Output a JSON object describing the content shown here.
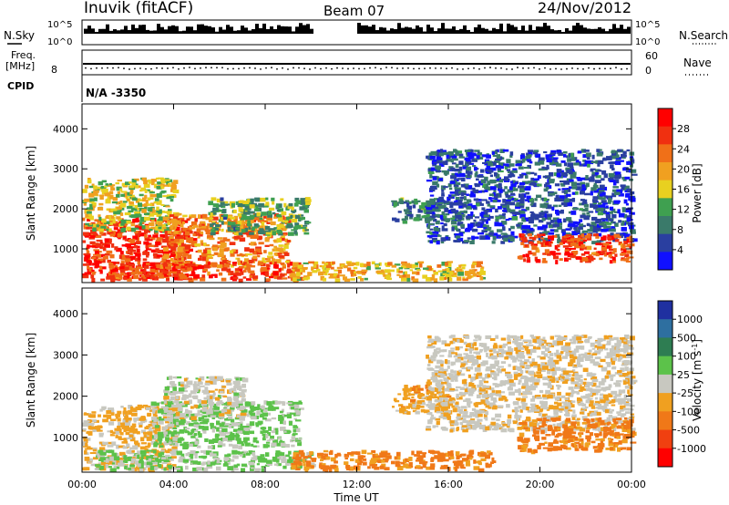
{
  "header": {
    "station": "Inuvik (fitACF)",
    "beam": "Beam 07",
    "date": "24/Nov/2012"
  },
  "top_panels": {
    "nsky_label": "N.Sky",
    "nsearch_label": "N.Search",
    "nsky_ticks": [
      "10^5",
      "10^0"
    ],
    "freq_label_1": "Freq.",
    "freq_label_2": "[MHz]",
    "freq_tick": "8",
    "nave_label": "Nave",
    "nave_ticks": [
      "60",
      "0"
    ],
    "cpid_label": "CPID",
    "cpid_value": "N/A -3350"
  },
  "colors": {
    "power": [
      "#1010ff",
      "#2a3fa0",
      "#3a7a6a",
      "#3fa050",
      "#e8d020",
      "#f0a020",
      "#f07018",
      "#f03010",
      "#ff0000"
    ],
    "velocity": [
      "#1f30a0",
      "#2e6fa0",
      "#2e7d52",
      "#5cc24a",
      "#c8c8c0",
      "#f0a020",
      "#f07818",
      "#f04010",
      "#ff0000"
    ]
  },
  "chart_data": [
    {
      "type": "heatmap",
      "name": "power",
      "ylabel": "Slant Range [km]",
      "xlabel": "",
      "x_ticks": [
        "00:00",
        "04:00",
        "08:00",
        "12:00",
        "16:00",
        "20:00",
        "00:00"
      ],
      "xlim_hours": [
        0,
        24
      ],
      "ylim_km": [
        180,
        4600
      ],
      "y_ticks": [
        1000,
        2000,
        3000,
        4000
      ],
      "colorbar": {
        "label": "Power [dB]",
        "ticks": [
          4,
          8,
          12,
          16,
          20,
          24,
          28
        ],
        "range": [
          0,
          32
        ]
      },
      "echo_regions": [
        {
          "t0": 0.0,
          "t1": 4.8,
          "r0": 250,
          "r1": 1800,
          "value": 27
        },
        {
          "t0": 0.0,
          "t1": 4.0,
          "r0": 1500,
          "r1": 2800,
          "value": 16
        },
        {
          "t0": 3.5,
          "t1": 9.0,
          "r0": 600,
          "r1": 1900,
          "value": 22
        },
        {
          "t0": 1.0,
          "t1": 9.5,
          "r0": 250,
          "r1": 700,
          "value": 26
        },
        {
          "t0": 5.5,
          "t1": 9.8,
          "r0": 1400,
          "r1": 2300,
          "value": 12
        },
        {
          "t0": 9.0,
          "t1": 17.5,
          "r0": 250,
          "r1": 700,
          "value": 18
        },
        {
          "t0": 13.5,
          "t1": 15.5,
          "r0": 1700,
          "r1": 2300,
          "value": 10
        },
        {
          "t0": 15.0,
          "t1": 24.0,
          "r0": 1200,
          "r1": 3500,
          "value": 6
        },
        {
          "t0": 19.0,
          "t1": 24.0,
          "r0": 700,
          "r1": 1400,
          "value": 26
        }
      ]
    },
    {
      "type": "heatmap",
      "name": "velocity",
      "ylabel": "Slant Range [km]",
      "xlabel": "Time UT",
      "x_ticks": [
        "00:00",
        "04:00",
        "08:00",
        "12:00",
        "16:00",
        "20:00",
        "00:00"
      ],
      "xlim_hours": [
        0,
        24
      ],
      "ylim_km": [
        180,
        4600
      ],
      "y_ticks": [
        1000,
        2000,
        3000,
        4000
      ],
      "colorbar": {
        "label": "Velocity [m s^-1]",
        "ticks": [
          "1000",
          "500",
          "100",
          "25",
          "-25",
          "-100",
          "-500",
          "-1000"
        ],
        "range": [
          -1000,
          1000
        ]
      },
      "echo_regions": [
        {
          "t0": 0.0,
          "t1": 4.0,
          "r0": 250,
          "r1": 1800,
          "value": -150
        },
        {
          "t0": 3.0,
          "t1": 9.5,
          "r0": 800,
          "r1": 1900,
          "value": 150
        },
        {
          "t0": 0.5,
          "t1": 10.0,
          "r0": 250,
          "r1": 700,
          "value": 120
        },
        {
          "t0": 3.5,
          "t1": 7.0,
          "r0": 1500,
          "r1": 2500,
          "value": 0
        },
        {
          "t0": 9.0,
          "t1": 18.0,
          "r0": 250,
          "r1": 700,
          "value": -400
        },
        {
          "t0": 13.5,
          "t1": 16.0,
          "r0": 1600,
          "r1": 2300,
          "value": -200
        },
        {
          "t0": 15.0,
          "t1": 24.0,
          "r0": 1200,
          "r1": 3500,
          "value": -50
        },
        {
          "t0": 19.0,
          "t1": 24.0,
          "r0": 700,
          "r1": 1500,
          "value": -400
        }
      ]
    }
  ]
}
